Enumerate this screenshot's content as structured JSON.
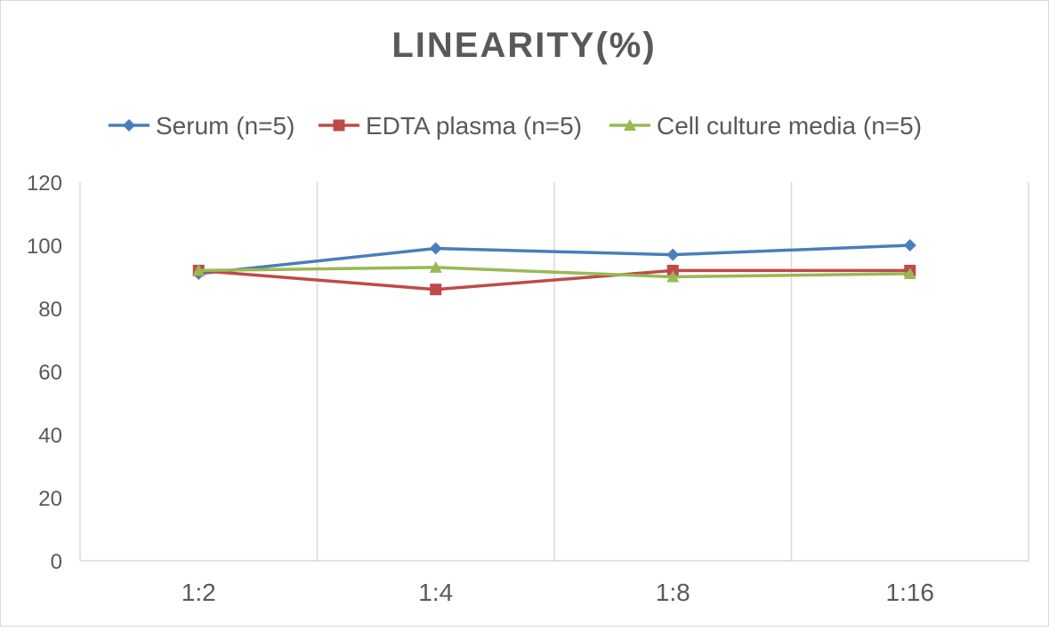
{
  "chart_data": {
    "type": "line",
    "title": "LINEARITY(%)",
    "xlabel": "",
    "ylabel": "",
    "categories": [
      "1:2",
      "1:4",
      "1:8",
      "1:16"
    ],
    "ylim": [
      0,
      120
    ],
    "yticks": [
      0,
      20,
      40,
      60,
      80,
      100,
      120
    ],
    "grid": "vertical",
    "legend": "top",
    "series": [
      {
        "name": "Serum (n=5)",
        "values": [
          91,
          99,
          97,
          100
        ],
        "color": "#4a7ebb",
        "marker": "diamond"
      },
      {
        "name": "EDTA plasma (n=5)",
        "values": [
          92,
          86,
          92,
          92
        ],
        "color": "#be4b48",
        "marker": "square"
      },
      {
        "name": "Cell culture media (n=5)",
        "values": [
          92,
          93,
          90,
          91
        ],
        "color": "#98b954",
        "marker": "triangle"
      }
    ]
  }
}
